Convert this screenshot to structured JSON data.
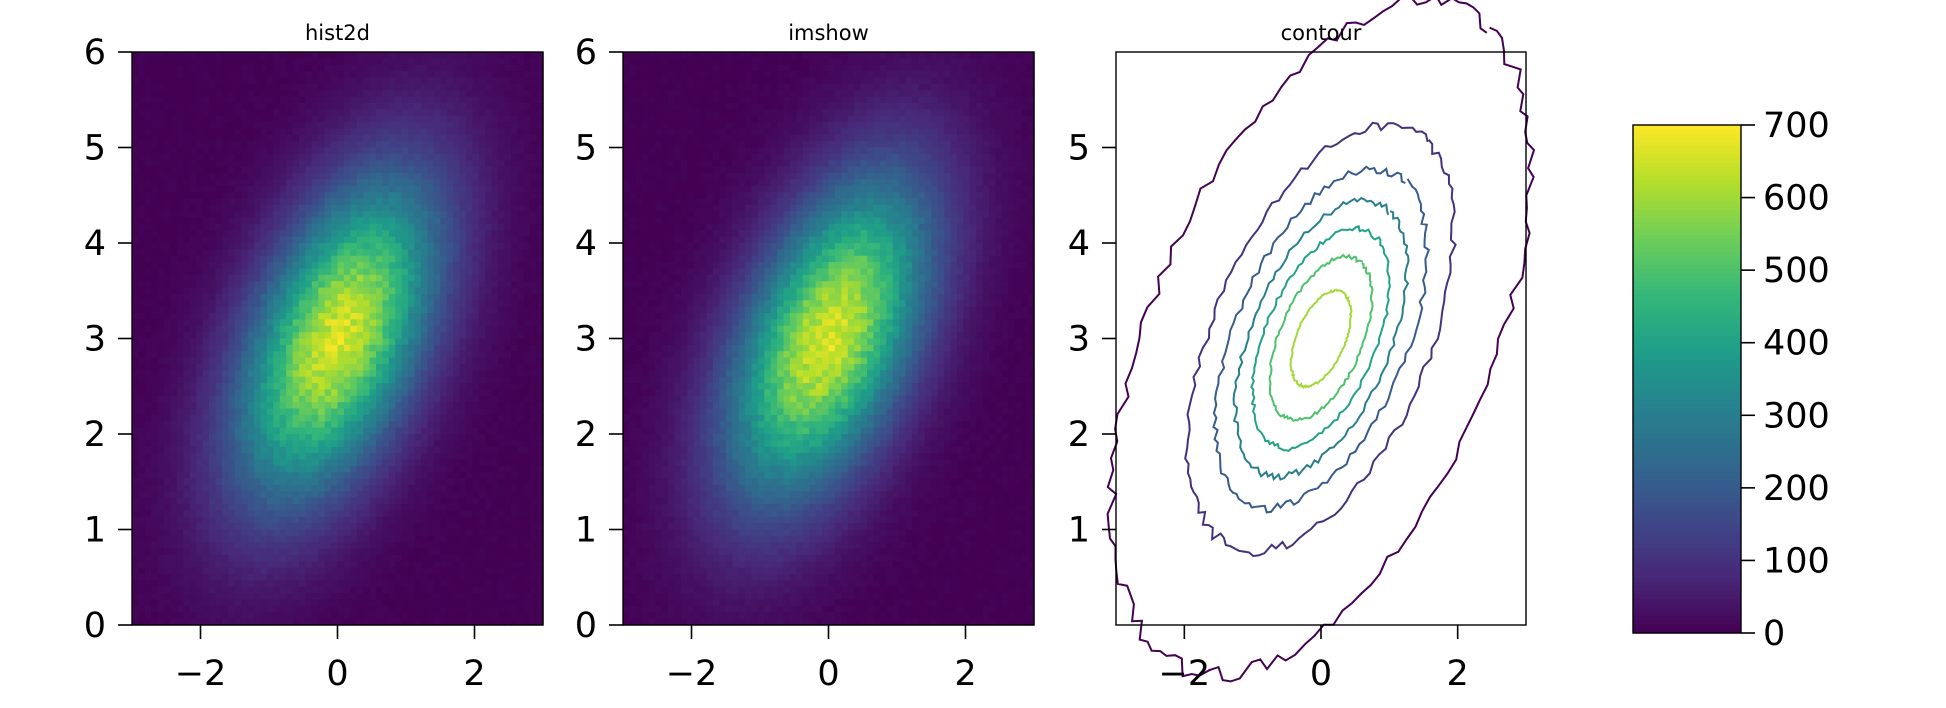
{
  "chart_data": [
    {
      "type": "heatmap",
      "title": "hist2d",
      "xlim": [
        -3,
        3
      ],
      "ylim": [
        0,
        6
      ],
      "xticks": [
        -2,
        0,
        2
      ],
      "yticks": [
        0,
        1,
        2,
        3,
        4,
        5,
        6
      ],
      "xtick_labels": [
        "−2",
        "0",
        "2"
      ],
      "ytick_labels": [
        "0",
        "1",
        "2",
        "3",
        "4",
        "5",
        "6"
      ],
      "colormap": "viridis",
      "color_range": [
        0,
        700
      ],
      "distribution": {
        "center_x": 0,
        "center_y": 3,
        "std_x": 1,
        "std_y": 1.15,
        "correlation": 0.5,
        "peak_count": 660
      },
      "grid": false
    },
    {
      "type": "heatmap",
      "title": "imshow",
      "xlim": [
        -3,
        3
      ],
      "ylim": [
        0,
        6
      ],
      "xticks": [
        -2,
        0,
        2
      ],
      "yticks": [
        0,
        1,
        2,
        3,
        4,
        5,
        6
      ],
      "xtick_labels": [
        "−2",
        "0",
        "2"
      ],
      "ytick_labels": [
        "0",
        "1",
        "2",
        "3",
        "4",
        "5",
        "6"
      ],
      "colormap": "viridis",
      "color_range": [
        0,
        700
      ],
      "distribution": {
        "center_x": 0,
        "center_y": 3,
        "std_x": 1,
        "std_y": 1.15,
        "correlation": 0.5,
        "peak_count": 660
      },
      "grid": false
    },
    {
      "type": "contour",
      "title": "contour",
      "xlim": [
        -3,
        3
      ],
      "ylim": [
        0,
        6
      ],
      "xticks": [
        -2,
        0,
        2
      ],
      "yticks": [
        1,
        2,
        3,
        4,
        5
      ],
      "xtick_labels": [
        "−2",
        "0",
        "2"
      ],
      "ytick_labels": [
        "1",
        "2",
        "3",
        "4",
        "5"
      ],
      "colormap": "viridis",
      "levels": [
        0,
        100,
        200,
        300,
        400,
        500,
        600
      ],
      "distribution": {
        "center_x": 0,
        "center_y": 3,
        "std_x": 1,
        "std_y": 1.15,
        "correlation": 0.5,
        "peak_count": 660
      },
      "grid": false
    }
  ],
  "colorbar": {
    "colormap": "viridis",
    "range": [
      0,
      700
    ],
    "ticks": [
      0,
      100,
      200,
      300,
      400,
      500,
      600,
      700
    ],
    "tick_labels": [
      "0",
      "100",
      "200",
      "300",
      "400",
      "500",
      "600",
      "700"
    ]
  },
  "colors": {
    "viridis_stops": [
      "#440154",
      "#482878",
      "#3e4989",
      "#31688e",
      "#26828e",
      "#1f9e89",
      "#35b779",
      "#6ece58",
      "#b5de2b",
      "#fde725"
    ]
  }
}
